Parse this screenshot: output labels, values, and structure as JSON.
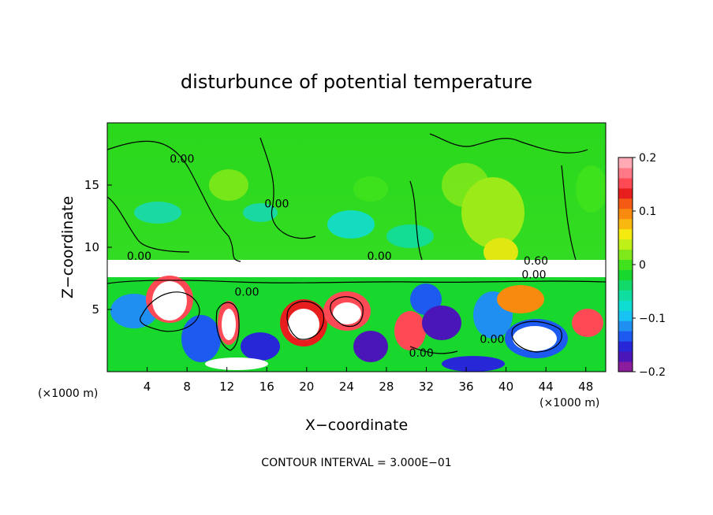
{
  "chart_data": {
    "type": "heatmap",
    "title": "disturbunce of potential temperature",
    "xlabel": "X−coordinate",
    "ylabel": "Z−coordinate",
    "x_unit_left": "(×1000 m)",
    "x_unit_right": "(×1000 m)",
    "footer": "CONTOUR INTERVAL = 3.000E−01",
    "xlim": [
      0,
      50
    ],
    "ylim": [
      0,
      20
    ],
    "xticks": [
      4,
      8,
      12,
      16,
      20,
      24,
      28,
      32,
      36,
      40,
      44,
      48
    ],
    "xtick_labels": [
      "4",
      "8",
      "12",
      "16",
      "20",
      "24",
      "28",
      "32",
      "36",
      "40",
      "44",
      "48"
    ],
    "yticks": [
      5,
      10,
      15
    ],
    "ytick_labels": [
      "5",
      "10",
      "15"
    ],
    "contour_labels": [
      {
        "text": "0.00",
        "x": 7.5,
        "y": 16.8
      },
      {
        "text": "0.00",
        "x": 3.2,
        "y": 9.0
      },
      {
        "text": "0.00",
        "x": 17.0,
        "y": 13.2
      },
      {
        "text": "0.00",
        "x": 27.3,
        "y": 9.0
      },
      {
        "text": "0.00",
        "x": 14.0,
        "y": 6.1
      },
      {
        "text": "0.60",
        "x": 43.0,
        "y": 8.6
      },
      {
        "text": "0.00",
        "x": 42.8,
        "y": 7.5
      },
      {
        "text": "0.00",
        "x": 31.5,
        "y": 1.2
      },
      {
        "text": "0.00",
        "x": 38.6,
        "y": 2.3
      }
    ],
    "colorbar": {
      "range": [
        -0.2,
        0.2
      ],
      "tick_values": [
        0.2,
        0.1,
        0,
        -0.1,
        -0.2
      ],
      "tick_labels": [
        "0.2",
        "0.1",
        "0",
        "−0.1",
        "−0.2"
      ],
      "colors": [
        "#8b1d9c",
        "#4b16b8",
        "#2727d8",
        "#1c5af0",
        "#1f8ff2",
        "#18c2f2",
        "#10ddd2",
        "#10dda0",
        "#12d96a",
        "#18d82e",
        "#3fe21c",
        "#7fe81a",
        "#bff018",
        "#f4ea10",
        "#f8b810",
        "#f88a10",
        "#f45a14",
        "#e81e1e",
        "#ff4a55",
        "#ff7a86",
        "#ffaab4"
      ]
    }
  }
}
